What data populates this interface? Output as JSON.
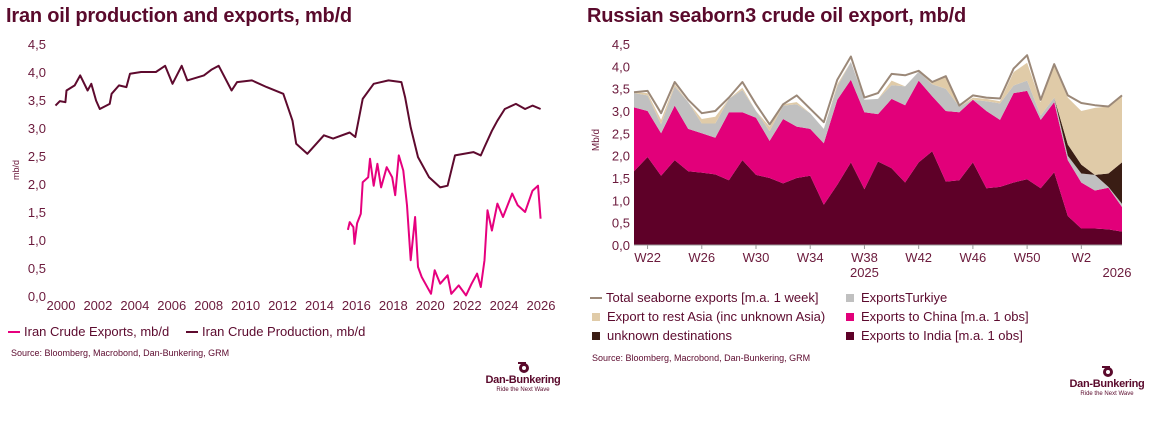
{
  "chart_data": [
    {
      "type": "line",
      "title": "Iran oil production and exports, mb/d",
      "xlabel": "",
      "ylabel": "mb/d",
      "xlim": [
        2000,
        2026
      ],
      "ylim": [
        0,
        4.5
      ],
      "x_ticks": [
        "2000",
        "2002",
        "2004",
        "2006",
        "2008",
        "2010",
        "2012",
        "2014",
        "2016",
        "2018",
        "2020",
        "2022",
        "2024",
        "2026"
      ],
      "y_ticks": [
        "0,0",
        "0,5",
        "1,0",
        "1,5",
        "2,0",
        "2,5",
        "3,0",
        "3,5",
        "4,0",
        "4,5"
      ],
      "grid": false,
      "legend_position": "bottom",
      "source": "Source: Bloomberg, Macrobond, Dan-Bunkering, GRM",
      "series": [
        {
          "name": "Iran Crude Exports, mb/d",
          "color": "#e6007e",
          "x": [
            2015.54,
            2015.64,
            2015.84,
            2015.9,
            2016.04,
            2016.24,
            2016.34,
            2016.64,
            2016.74,
            2016.94,
            2017.14,
            2017.34,
            2017.64,
            2017.94,
            2018.1,
            2018.3,
            2018.54,
            2018.74,
            2018.94,
            2019.18,
            2019.34,
            2019.54,
            2019.74,
            2020.04,
            2020.24,
            2020.54,
            2020.94,
            2021.14,
            2021.54,
            2021.94,
            2022.24,
            2022.54,
            2022.74,
            2022.94,
            2023.1,
            2023.34,
            2023.64,
            2023.94,
            2024.44,
            2024.74,
            2025.14,
            2025.54,
            2025.84,
            2025.98
          ],
          "y": [
            1.18,
            1.32,
            1.23,
            0.93,
            1.3,
            1.47,
            2.03,
            2.12,
            2.45,
            1.97,
            2.36,
            1.94,
            2.3,
            2.12,
            1.8,
            2.51,
            2.24,
            1.62,
            0.64,
            1.41,
            0.52,
            0.34,
            0.22,
            0.04,
            0.46,
            0.22,
            0.37,
            0.04,
            0.19,
            0.01,
            0.22,
            0.4,
            0.16,
            0.64,
            1.53,
            1.17,
            1.65,
            1.41,
            1.83,
            1.62,
            1.5,
            1.88,
            1.97,
            1.38
          ]
        },
        {
          "name": "Iran Crude Production, mb/d",
          "color": "#5e0a2e",
          "x": [
            1999.7,
            1999.94,
            2000.24,
            2000.3,
            2000.74,
            2001.04,
            2001.44,
            2001.64,
            2001.9,
            2002.1,
            2002.64,
            2002.74,
            2003.14,
            2003.54,
            2003.74,
            2004.34,
            2005.14,
            2005.64,
            2006.04,
            2006.54,
            2006.84,
            2007.74,
            2008.14,
            2008.54,
            2009.24,
            2009.54,
            2010.34,
            2011.14,
            2012.04,
            2012.54,
            2012.74,
            2013.34,
            2014.24,
            2014.74,
            2015.64,
            2015.94,
            2016.34,
            2016.94,
            2017.74,
            2018.44,
            2018.64,
            2018.94,
            2019.34,
            2019.94,
            2020.54,
            2020.94,
            2021.34,
            2022.34,
            2022.74,
            2022.94,
            2023.34,
            2023.64,
            2024.04,
            2024.64,
            2025.14,
            2025.54,
            2025.98
          ],
          "y": [
            3.4,
            3.48,
            3.46,
            3.67,
            3.76,
            3.94,
            3.67,
            3.79,
            3.49,
            3.34,
            3.43,
            3.61,
            3.76,
            3.73,
            3.97,
            4.0,
            4.0,
            4.11,
            3.79,
            4.11,
            3.85,
            3.94,
            4.04,
            4.11,
            3.67,
            3.82,
            3.85,
            3.73,
            3.61,
            3.13,
            2.72,
            2.54,
            2.87,
            2.81,
            2.92,
            2.84,
            3.52,
            3.79,
            3.85,
            3.82,
            3.55,
            3.01,
            2.48,
            2.12,
            1.94,
            1.97,
            2.51,
            2.57,
            2.51,
            2.66,
            2.95,
            3.13,
            3.34,
            3.43,
            3.34,
            3.4,
            3.34
          ]
        }
      ]
    },
    {
      "type": "area",
      "stacked": true,
      "title": "Russian seaborn3 crude oil export, mb/d",
      "ylabel": "Mb/d",
      "ylim": [
        0,
        4.5
      ],
      "y_ticks": [
        "0,0",
        "0,5",
        "1,0",
        "1,5",
        "2,0",
        "2,5",
        "3,0",
        "3,5",
        "4,0",
        "4,5"
      ],
      "x_ticks": [
        {
          "index": 1,
          "label": "W22"
        },
        {
          "index": 5,
          "label": "W26"
        },
        {
          "index": 9,
          "label": "W30"
        },
        {
          "index": 13,
          "label": "W34"
        },
        {
          "index": 17,
          "label": "W38"
        },
        {
          "index": 21,
          "label": "W42"
        },
        {
          "index": 25,
          "label": "W46"
        },
        {
          "index": 29,
          "label": "W50"
        },
        {
          "index": 33,
          "label": "W2"
        }
      ],
      "year_labels": [
        {
          "index": 17,
          "label": "2025"
        },
        {
          "index": 36,
          "label": "2026"
        }
      ],
      "grid": false,
      "legend_position": "bottom",
      "source": "Source: Bloomberg, Macrobond, Dan-Bunkering, GRM",
      "series": [
        {
          "name": "Exports to India  [m.a. 1 obs]",
          "color": "#5e0028",
          "values": [
            1.65,
            1.97,
            1.55,
            1.9,
            1.65,
            1.62,
            1.58,
            1.45,
            1.9,
            1.57,
            1.5,
            1.38,
            1.5,
            1.55,
            0.9,
            1.35,
            1.85,
            1.25,
            1.87,
            1.72,
            1.4,
            1.85,
            2.1,
            1.42,
            1.45,
            1.85,
            1.27,
            1.3,
            1.4,
            1.47,
            1.27,
            1.63,
            0.65,
            0.37,
            0.37,
            0.35,
            0.3
          ]
        },
        {
          "name": "Exports to China [m.a. 1 obs]",
          "color": "#e2007a",
          "values": [
            1.43,
            1.03,
            0.95,
            1.22,
            0.95,
            0.88,
            0.82,
            1.52,
            1.07,
            1.28,
            0.83,
            1.44,
            1.15,
            1.05,
            1.38,
            1.9,
            1.85,
            1.72,
            1.06,
            1.55,
            1.73,
            1.83,
            1.23,
            1.58,
            1.52,
            1.4,
            1.73,
            1.5,
            2.0,
            1.98,
            1.53,
            1.57,
            1.25,
            1.03,
            0.85,
            0.93,
            0.55
          ]
        },
        {
          "name": "ExportsTurkiye",
          "color": "#c0c0c0",
          "values": [
            0.32,
            0.35,
            0.2,
            0.43,
            0.6,
            0.22,
            0.32,
            0.3,
            0.5,
            0.15,
            0.22,
            0.3,
            0.5,
            0.35,
            0.32,
            0.3,
            0.4,
            0.28,
            0.34,
            0.31,
            0.42,
            0.2,
            0.27,
            0.5,
            0.13,
            0.0,
            0.22,
            0.37,
            0.17,
            0.23,
            0.1,
            0.1,
            0.1,
            0.2,
            0.35,
            0.02,
            0.07
          ]
        },
        {
          "name": "unknown destinations",
          "color": "#3a1d14",
          "values": [
            0,
            0,
            0,
            0,
            0,
            0,
            0,
            0,
            0,
            0,
            0,
            0,
            0,
            0,
            0,
            0,
            0,
            0,
            0,
            0,
            0,
            0,
            0,
            0,
            0,
            0,
            0,
            0,
            0,
            0,
            0,
            0,
            0.25,
            0.2,
            0.0,
            0.3,
            0.93
          ]
        },
        {
          "name": "Export to rest Asia (inc unknown Asia)",
          "color": "#e0cba8",
          "values": [
            0.02,
            0.05,
            0.1,
            0.05,
            0,
            0.1,
            0.15,
            0,
            0.05,
            0,
            0.1,
            0.03,
            0.05,
            0,
            0,
            0.05,
            0,
            0,
            0,
            0.1,
            0,
            0,
            0.05,
            0.28,
            0,
            0.05,
            0.05,
            0.05,
            0.3,
            0.4,
            0.3,
            0.7,
            1.05,
            1.2,
            1.5,
            1.5,
            1.5
          ]
        }
      ],
      "total": {
        "name": "Total seaborne exports  [m.a. 1 week]",
        "color": "#9b8878",
        "values": [
          3.42,
          3.45,
          2.95,
          3.65,
          3.25,
          2.95,
          3.0,
          3.3,
          3.65,
          3.15,
          2.7,
          3.15,
          3.35,
          3.05,
          2.75,
          3.7,
          4.22,
          3.3,
          3.4,
          3.83,
          3.8,
          3.9,
          3.65,
          3.78,
          3.12,
          3.35,
          3.3,
          3.28,
          3.95,
          4.25,
          3.25,
          4.05,
          3.35,
          3.18,
          3.13,
          3.1,
          3.35
        ]
      }
    }
  ],
  "logo": {
    "name": "Dan-Bunkering",
    "tagline": "Ride the Next Wave"
  }
}
